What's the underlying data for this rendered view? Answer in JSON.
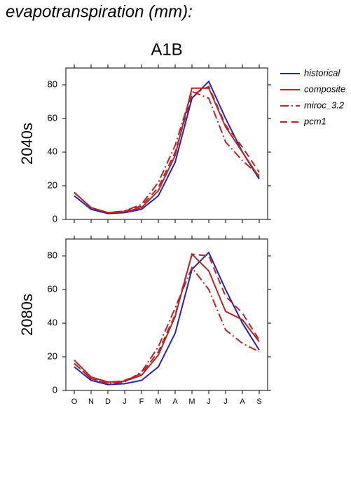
{
  "title": "evapotranspiration (mm):",
  "subtitle": "A1B",
  "chart_data": [
    {
      "type": "line",
      "ylabel": "2040s",
      "categories": [
        null,
        null,
        null,
        null,
        null,
        null,
        null,
        null,
        null,
        null,
        null,
        null
      ],
      "ylim": [
        0,
        90
      ],
      "yticks": [
        0,
        20,
        40,
        60,
        80
      ],
      "series": [
        {
          "name": "historical",
          "color": "#2323b8",
          "dash": "solid",
          "values": [
            14,
            6,
            3.5,
            4,
            6,
            14,
            34,
            72,
            82,
            60,
            40,
            24
          ]
        },
        {
          "name": "composite",
          "color": "#b82323",
          "dash": "solid",
          "values": [
            16,
            7,
            4,
            4.5,
            7,
            17,
            38,
            78,
            78,
            55,
            40,
            25
          ]
        },
        {
          "name": "miroc_3.2",
          "color": "#b82323",
          "dash": "dashdot",
          "values": [
            16,
            7,
            4,
            5,
            9,
            22,
            44,
            76,
            72,
            46,
            35,
            26
          ]
        },
        {
          "name": "pcm1",
          "color": "#b82323",
          "dash": "dashed",
          "values": [
            16,
            7,
            4,
            5,
            8,
            19,
            40,
            74,
            79,
            56,
            43,
            28
          ]
        }
      ]
    },
    {
      "type": "line",
      "ylabel": "2080s",
      "categories": [
        "O",
        "N",
        "D",
        "J",
        "F",
        "M",
        "A",
        "M",
        "J",
        "J",
        "A",
        "S"
      ],
      "ylim": [
        0,
        90
      ],
      "yticks": [
        0,
        20,
        40,
        60,
        80
      ],
      "series": [
        {
          "color": "#2323b8",
          "dash": "solid",
          "values": [
            14,
            6,
            3.5,
            4,
            6,
            14,
            34,
            72,
            82,
            60,
            40,
            24
          ]
        },
        {
          "color": "#b82323",
          "dash": "solid",
          "values": [
            18,
            8,
            5,
            5.5,
            9,
            21,
            44,
            81,
            71,
            47,
            42,
            29
          ]
        },
        {
          "color": "#b82323",
          "dash": "dashdot",
          "values": [
            16,
            7,
            4,
            5,
            11,
            26,
            49,
            73,
            60,
            36,
            28,
            23
          ]
        },
        {
          "color": "#b82323",
          "dash": "dashed",
          "values": [
            16,
            7,
            4.5,
            6,
            10,
            23,
            45,
            81,
            80,
            56,
            46,
            30
          ]
        }
      ]
    }
  ]
}
